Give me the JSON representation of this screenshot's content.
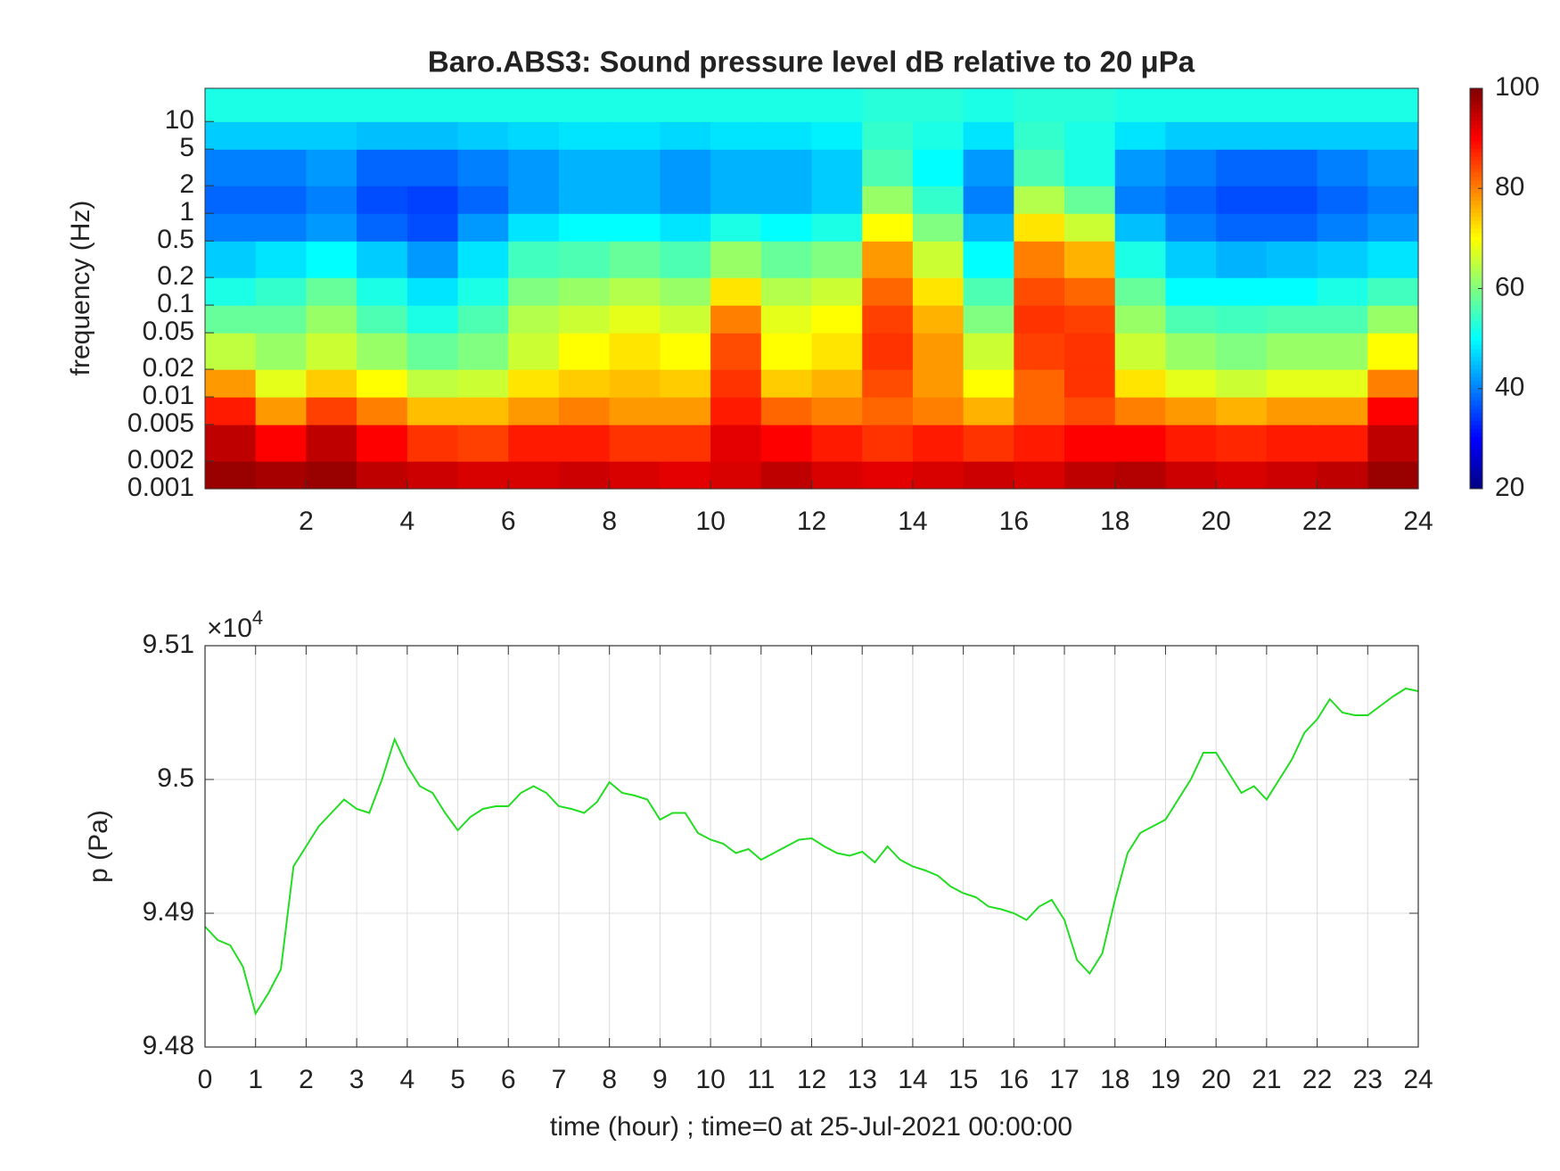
{
  "chart_data": [
    {
      "type": "heatmap",
      "title": "Baro.ABS3: Sound pressure level dB relative to 20 μPa",
      "ylabel": "frequency (Hz)",
      "xlim": [
        0,
        24
      ],
      "xticks": [
        2,
        4,
        6,
        8,
        10,
        12,
        14,
        16,
        18,
        20,
        22,
        24
      ],
      "ylim": [
        0.001,
        23
      ],
      "yscale": "log",
      "yticks": [
        0.001,
        0.002,
        0.005,
        0.01,
        0.02,
        0.05,
        0.1,
        0.2,
        0.5,
        1,
        2,
        5,
        10
      ],
      "colormap": "jet",
      "clim": [
        20,
        100
      ],
      "cticks": [
        20,
        40,
        60,
        80,
        100
      ],
      "xbins": [
        0,
        1,
        2,
        3,
        4,
        5,
        6,
        7,
        8,
        9,
        10,
        11,
        12,
        13,
        14,
        15,
        16,
        17,
        18,
        19,
        20,
        21,
        22,
        23,
        24
      ],
      "ybins": [
        0.001,
        0.002,
        0.005,
        0.01,
        0.02,
        0.05,
        0.1,
        0.2,
        0.5,
        1,
        2,
        5,
        10,
        23
      ],
      "z": [
        [
          98,
          97,
          98,
          95,
          94,
          93,
          93,
          94,
          93,
          92,
          93,
          95,
          93,
          92,
          93,
          94,
          93,
          95,
          96,
          94,
          93,
          94,
          95,
          98
        ],
        [
          95,
          90,
          95,
          90,
          86,
          85,
          88,
          88,
          86,
          86,
          92,
          90,
          88,
          86,
          88,
          86,
          88,
          90,
          90,
          88,
          87,
          88,
          88,
          95
        ],
        [
          88,
          78,
          85,
          80,
          75,
          75,
          78,
          80,
          78,
          78,
          88,
          82,
          80,
          82,
          80,
          76,
          82,
          84,
          80,
          78,
          76,
          78,
          78,
          90
        ],
        [
          78,
          68,
          74,
          70,
          65,
          66,
          72,
          74,
          75,
          74,
          86,
          74,
          76,
          84,
          78,
          70,
          82,
          86,
          72,
          68,
          66,
          68,
          68,
          80
        ],
        [
          65,
          62,
          66,
          62,
          58,
          60,
          66,
          70,
          72,
          70,
          84,
          70,
          72,
          86,
          78,
          66,
          85,
          86,
          66,
          62,
          60,
          62,
          62,
          70
        ],
        [
          58,
          58,
          62,
          56,
          52,
          56,
          64,
          66,
          68,
          66,
          80,
          68,
          70,
          85,
          76,
          60,
          86,
          85,
          62,
          56,
          55,
          56,
          56,
          62
        ],
        [
          52,
          54,
          58,
          52,
          48,
          52,
          60,
          62,
          64,
          62,
          72,
          64,
          66,
          82,
          72,
          56,
          84,
          82,
          58,
          50,
          50,
          50,
          52,
          55
        ],
        [
          46,
          48,
          50,
          46,
          42,
          48,
          55,
          56,
          58,
          56,
          62,
          58,
          60,
          78,
          66,
          50,
          80,
          76,
          52,
          46,
          44,
          45,
          46,
          48
        ],
        [
          40,
          40,
          42,
          38,
          36,
          42,
          48,
          50,
          50,
          48,
          52,
          50,
          52,
          70,
          60,
          44,
          72,
          66,
          45,
          40,
          38,
          38,
          40,
          42
        ],
        [
          38,
          38,
          40,
          36,
          35,
          38,
          42,
          44,
          44,
          42,
          44,
          44,
          46,
          62,
          54,
          40,
          64,
          58,
          40,
          38,
          36,
          36,
          38,
          40
        ],
        [
          40,
          40,
          42,
          38,
          38,
          40,
          42,
          44,
          44,
          42,
          44,
          44,
          46,
          56,
          50,
          42,
          56,
          52,
          42,
          40,
          38,
          38,
          40,
          42
        ],
        [
          46,
          46,
          46,
          45,
          45,
          46,
          47,
          48,
          48,
          47,
          48,
          48,
          49,
          54,
          52,
          48,
          54,
          52,
          48,
          46,
          46,
          46,
          46,
          46
        ],
        [
          52,
          52,
          52,
          52,
          52,
          52,
          52,
          52,
          52,
          52,
          52,
          52,
          52,
          53,
          53,
          52,
          53,
          53,
          52,
          52,
          52,
          52,
          52,
          52
        ]
      ]
    },
    {
      "type": "line",
      "xlabel": "time (hour) ; time=0 at 25-Jul-2021 00:00:00",
      "ylabel": "p (Pa)",
      "y_multiplier": {
        "base": "×10",
        "exponent": "4"
      },
      "xlim": [
        0,
        24
      ],
      "xticks": [
        0,
        1,
        2,
        3,
        4,
        5,
        6,
        7,
        8,
        9,
        10,
        11,
        12,
        13,
        14,
        15,
        16,
        17,
        18,
        19,
        20,
        21,
        22,
        23,
        24
      ],
      "ylim": [
        94800,
        95100
      ],
      "yticks": [
        {
          "value": 94800,
          "label": "9.48"
        },
        {
          "value": 94900,
          "label": "9.49"
        },
        {
          "value": 95000,
          "label": "9.5"
        },
        {
          "value": 95100,
          "label": "9.51"
        }
      ],
      "grid": true,
      "color": "#22dd22",
      "x": [
        0,
        0.25,
        0.5,
        0.75,
        1,
        1.25,
        1.5,
        1.75,
        2,
        2.25,
        2.5,
        2.75,
        3,
        3.25,
        3.5,
        3.75,
        4,
        4.25,
        4.5,
        4.75,
        5,
        5.25,
        5.5,
        5.75,
        6,
        6.25,
        6.5,
        6.75,
        7,
        7.25,
        7.5,
        7.75,
        8,
        8.25,
        8.5,
        8.75,
        9,
        9.25,
        9.5,
        9.75,
        10,
        10.25,
        10.5,
        10.75,
        11,
        11.25,
        11.5,
        11.75,
        12,
        12.25,
        12.5,
        12.75,
        13,
        13.25,
        13.5,
        13.75,
        14,
        14.25,
        14.5,
        14.75,
        15,
        15.25,
        15.5,
        15.75,
        16,
        16.25,
        16.5,
        16.75,
        17,
        17.25,
        17.5,
        17.75,
        18,
        18.25,
        18.5,
        18.75,
        19,
        19.25,
        19.5,
        19.75,
        20,
        20.25,
        20.5,
        20.75,
        21,
        21.25,
        21.5,
        21.75,
        22,
        22.25,
        22.5,
        22.75,
        23,
        23.25,
        23.5,
        23.75,
        24
      ],
      "values": [
        94890,
        94880,
        94876,
        94860,
        94825,
        94840,
        94858,
        94935,
        94950,
        94965,
        94975,
        94985,
        94978,
        94975,
        95000,
        95030,
        95010,
        94995,
        94990,
        94975,
        94962,
        94972,
        94978,
        94980,
        94980,
        94990,
        94995,
        94990,
        94980,
        94978,
        94975,
        94983,
        94998,
        94990,
        94988,
        94985,
        94970,
        94975,
        94975,
        94960,
        94955,
        94952,
        94945,
        94948,
        94940,
        94945,
        94950,
        94955,
        94956,
        94950,
        94945,
        94943,
        94946,
        94938,
        94950,
        94940,
        94935,
        94932,
        94928,
        94920,
        94915,
        94912,
        94905,
        94903,
        94900,
        94895,
        94905,
        94910,
        94895,
        94865,
        94855,
        94870,
        94910,
        94945,
        94960,
        94965,
        94970,
        94985,
        95000,
        95020,
        95020,
        95005,
        94990,
        94995,
        94985,
        95000,
        95015,
        95035,
        95045,
        95060,
        95050,
        95048,
        95048,
        95055,
        95062,
        95068,
        95066
      ]
    }
  ]
}
